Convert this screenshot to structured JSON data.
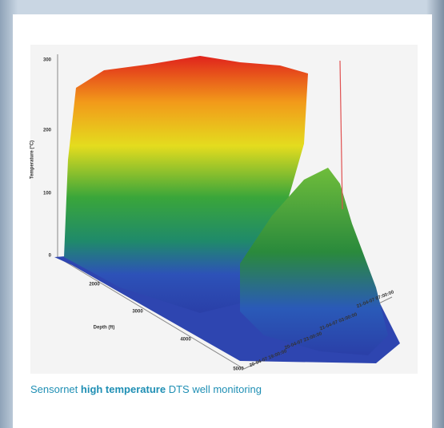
{
  "figure": {
    "y_axis_label": "Temperature (°C)",
    "y_ticks": [
      300,
      200,
      100,
      0
    ],
    "depth_axis_label": "Depth (ft)",
    "depth_ticks": [
      2000,
      3000,
      4000,
      5000
    ],
    "time_ticks": [
      "20-04-07 19:00:00",
      "20-04-07 23:00:00",
      "21-04-07 03:00:00",
      "21-04-07 07:00:00"
    ]
  },
  "caption": {
    "prefix": "Sensornet",
    "emphasis": "high temperature",
    "suffix": "DTS well monitoring"
  }
}
